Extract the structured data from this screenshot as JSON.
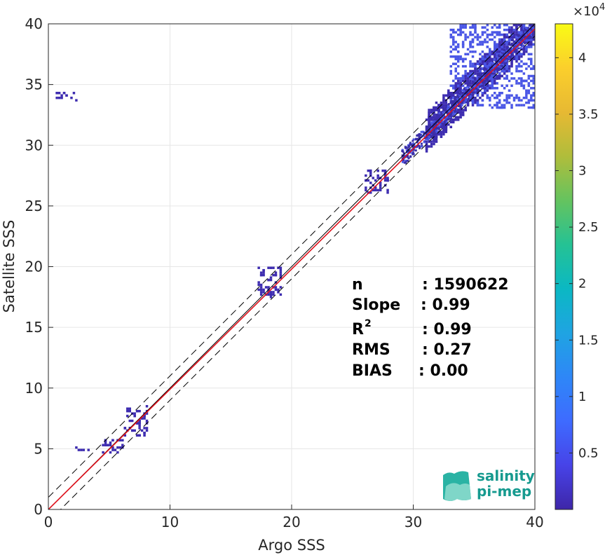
{
  "chart_data": {
    "type": "heatmap",
    "title": "",
    "xlabel": "Argo SSS",
    "ylabel": "Satellite SSS",
    "xlim": [
      0,
      40
    ],
    "ylim": [
      0,
      40
    ],
    "xticks": [
      0,
      10,
      20,
      30,
      40
    ],
    "yticks": [
      0,
      5,
      10,
      15,
      20,
      25,
      30,
      35,
      40
    ],
    "grid": true,
    "colormap": "parula",
    "colorbar": {
      "exponent_label": "×10",
      "exponent": "4",
      "range": [
        0,
        43000
      ],
      "ticks": [
        "0.5",
        "1",
        "1.5",
        "2",
        "2.5",
        "3",
        "3.5",
        "4"
      ],
      "tick_values": [
        5000,
        10000,
        15000,
        20000,
        25000,
        30000,
        35000,
        40000
      ],
      "colors": [
        "#3e26a8",
        "#4743e8",
        "#3e6bff",
        "#2e87f7",
        "#1fa4e2",
        "#0bb8c3",
        "#25c294",
        "#65c35f",
        "#b0bd3b",
        "#e7b933",
        "#fbcf2c",
        "#f9fb15"
      ]
    },
    "lines": [
      {
        "name": "one-to-one",
        "slope": 1,
        "intercept": 0,
        "color": "#000000",
        "style": "solid"
      },
      {
        "name": "regression",
        "slope": 0.99,
        "intercept": 0,
        "color": "#e0101a",
        "style": "solid"
      },
      {
        "name": "upper-bound",
        "slope": 1,
        "intercept": 1,
        "color": "#000000",
        "style": "dashed"
      },
      {
        "name": "lower-bound",
        "slope": 1,
        "intercept": -1,
        "color": "#000000",
        "style": "dashed"
      }
    ],
    "density_clusters": [
      {
        "x": [
          31,
          40
        ],
        "y": [
          29,
          40
        ],
        "level": "low",
        "note": "main cluster"
      },
      {
        "x": [
          33,
          40
        ],
        "y": [
          33,
          40
        ],
        "level": "medium"
      },
      {
        "x": [
          17.2,
          19.2
        ],
        "y": [
          17.5,
          20
        ],
        "level": "low"
      },
      {
        "x": [
          26,
          28
        ],
        "y": [
          26,
          28
        ],
        "level": "low"
      },
      {
        "x": [
          6.2,
          8.2
        ],
        "y": [
          6,
          8.5
        ],
        "level": "low"
      },
      {
        "x": [
          4.5,
          6.2
        ],
        "y": [
          4.5,
          5.8
        ],
        "level": "low"
      },
      {
        "x": [
          2.3,
          3.3
        ],
        "y": [
          4.8,
          5.2
        ],
        "level": "low"
      },
      {
        "x": [
          0.6,
          2.4
        ],
        "y": [
          33.7,
          34.4
        ],
        "level": "low"
      }
    ],
    "annotations": [
      {
        "label": "n",
        "value": ": 1590622"
      },
      {
        "label": "Slope",
        "value": ": 0.99"
      },
      {
        "label": "R",
        "sup": "2",
        "value": ": 0.99"
      },
      {
        "label": "RMS",
        "value": ": 0.27"
      },
      {
        "label": "BIAS",
        "value": ": 0.00"
      }
    ]
  },
  "logo": {
    "line1": "salinity",
    "line2": "pi-mep"
  }
}
